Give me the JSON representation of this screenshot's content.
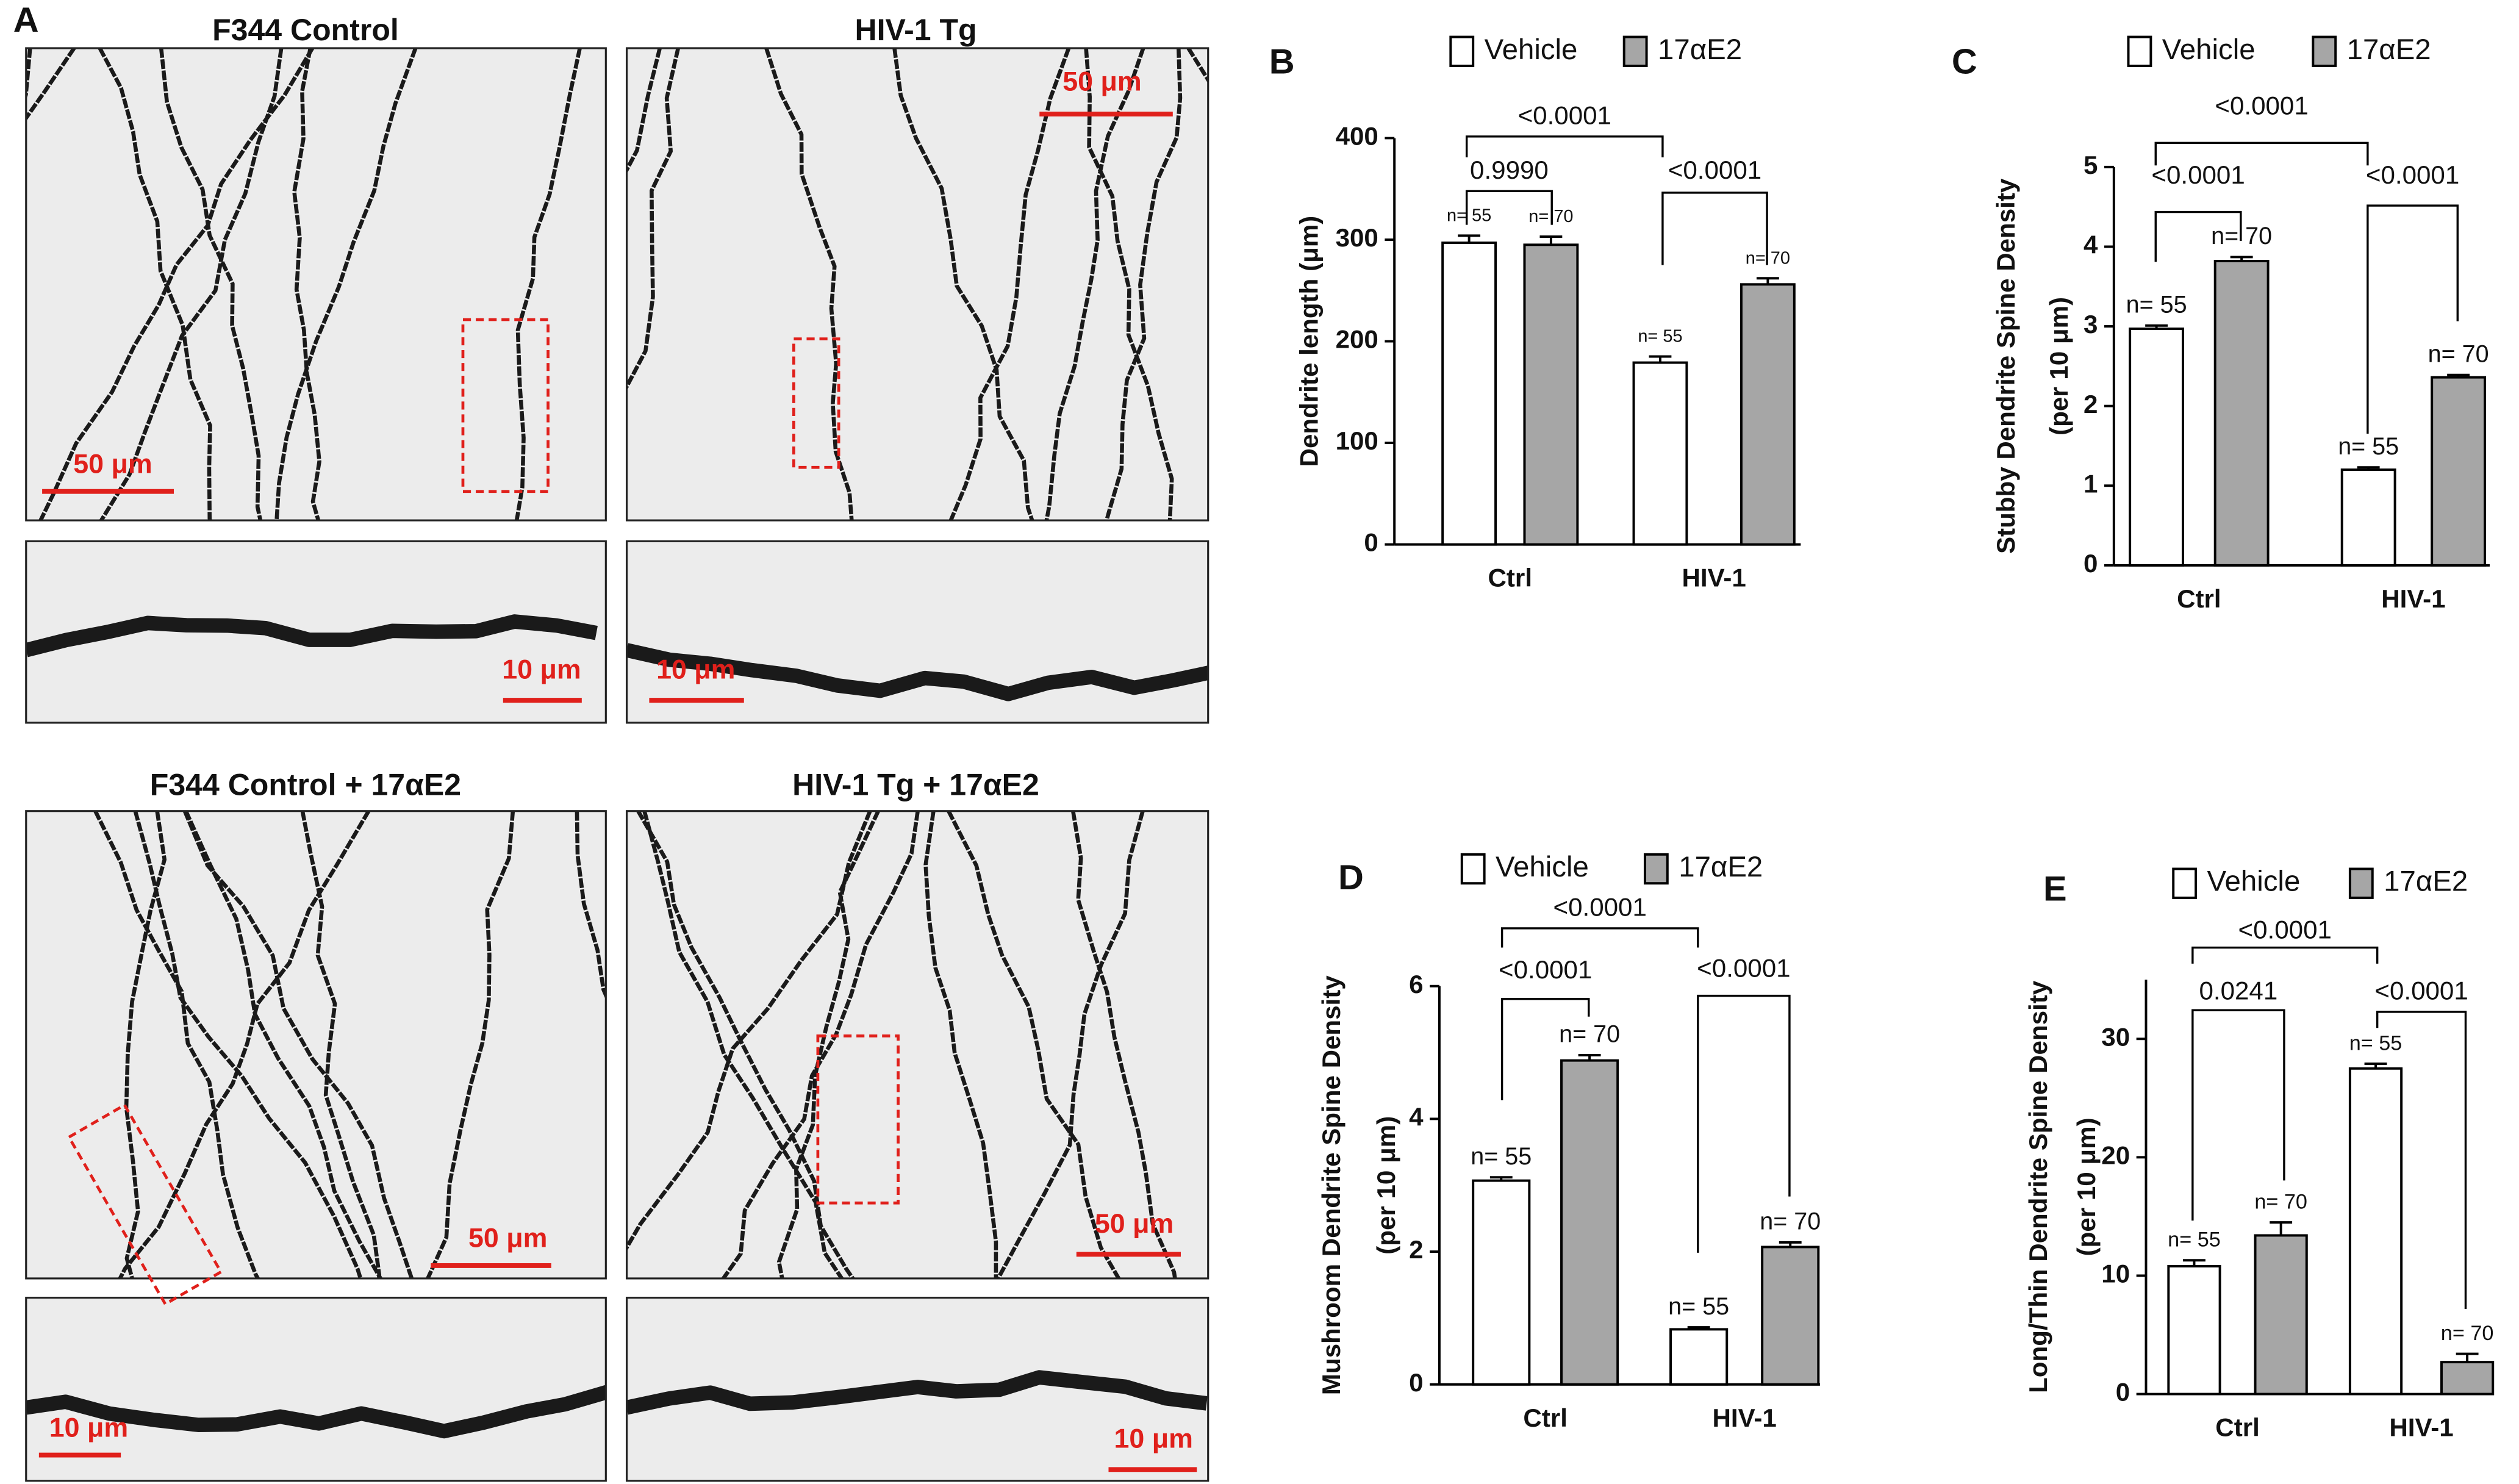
{
  "panel_labels": [
    "A",
    "B",
    "C",
    "D",
    "E"
  ],
  "micrographs": {
    "titles": [
      "F344 Control",
      "HIV-1 Tg",
      "F344 Control + 17αE2",
      "HIV-1 Tg + 17αE2"
    ],
    "scale_bars": [
      "50 μm",
      "50 μm",
      "10 μm",
      "10 μm",
      "50 μm",
      "50 μm",
      "10 μm",
      "10 μm"
    ]
  },
  "chart_data": [
    {
      "type": "bar",
      "ylabel": [
        "Dendrite length (μm)"
      ],
      "categories": [
        "Ctrl",
        "HIV-1"
      ],
      "series": [
        {
          "name": "Vehicle",
          "color": "#ffffff",
          "values": [
            297,
            179
          ],
          "errors": [
            7,
            6
          ],
          "n_labels": [
            "n= 55",
            "n= 55"
          ]
        },
        {
          "name": "17αE2",
          "color": "#a6a6a6",
          "values": [
            295,
            256
          ],
          "errors": [
            8,
            6
          ],
          "n_labels": [
            "n= 70",
            "n= 70"
          ]
        }
      ],
      "ylim": [
        0,
        400
      ],
      "yticks": [
        0,
        100,
        200,
        300,
        400
      ],
      "annotations": [
        "<0.0001",
        "0.9990",
        "<0.0001"
      ]
    },
    {
      "type": "bar",
      "ylabel": [
        "Stubby Dendrite Spine Density",
        "(per 10 μm)"
      ],
      "categories": [
        "Ctrl",
        "HIV-1"
      ],
      "series": [
        {
          "name": "Vehicle",
          "color": "#ffffff",
          "values": [
            2.97,
            1.2
          ],
          "errors": [
            0.04,
            0.03
          ],
          "n_labels": [
            "n= 55",
            "n= 55"
          ]
        },
        {
          "name": "17αE2",
          "color": "#a6a6a6",
          "values": [
            3.82,
            2.36
          ],
          "errors": [
            0.05,
            0.03
          ],
          "n_labels": [
            "n= 70",
            "n= 70"
          ]
        }
      ],
      "ylim": [
        0,
        5
      ],
      "yticks": [
        0,
        1,
        2,
        3,
        4,
        5
      ],
      "annotations": [
        "<0.0001",
        "<0.0001",
        "<0.0001"
      ]
    },
    {
      "type": "bar",
      "ylabel": [
        "Mushroom Dendrite Spine Density",
        "(per 10 μm)"
      ],
      "categories": [
        "Ctrl",
        "HIV-1"
      ],
      "series": [
        {
          "name": "Vehicle",
          "color": "#ffffff",
          "values": [
            3.07,
            0.83
          ],
          "errors": [
            0.05,
            0.03
          ],
          "n_labels": [
            "n= 55",
            "n= 55"
          ]
        },
        {
          "name": "17αE2",
          "color": "#a6a6a6",
          "values": [
            4.88,
            2.07
          ],
          "errors": [
            0.08,
            0.07
          ],
          "n_labels": [
            "n= 70",
            "n= 70"
          ]
        }
      ],
      "ylim": [
        0,
        6
      ],
      "yticks": [
        0,
        2,
        4,
        6
      ],
      "annotations": [
        "<0.0001",
        "<0.0001",
        "<0.0001"
      ]
    },
    {
      "type": "bar",
      "ylabel": [
        "Long/Thin Dendrite Spine Density",
        "(per 10 μm)"
      ],
      "categories": [
        "Ctrl",
        "HIV-1"
      ],
      "series": [
        {
          "name": "Vehicle",
          "color": "#ffffff",
          "values": [
            10.8,
            27.5
          ],
          "errors": [
            0.5,
            0.4
          ],
          "n_labels": [
            "n= 55",
            "n= 55"
          ]
        },
        {
          "name": "17αE2",
          "color": "#a6a6a6",
          "values": [
            13.4,
            2.7
          ],
          "errors": [
            1.1,
            0.7
          ],
          "n_labels": [
            "n= 70",
            "n= 70"
          ]
        }
      ],
      "ylim": [
        0,
        35
      ],
      "yticks": [
        0,
        10,
        20,
        30
      ],
      "annotations": [
        "<0.0001",
        "0.0241",
        "<0.0001"
      ]
    }
  ]
}
